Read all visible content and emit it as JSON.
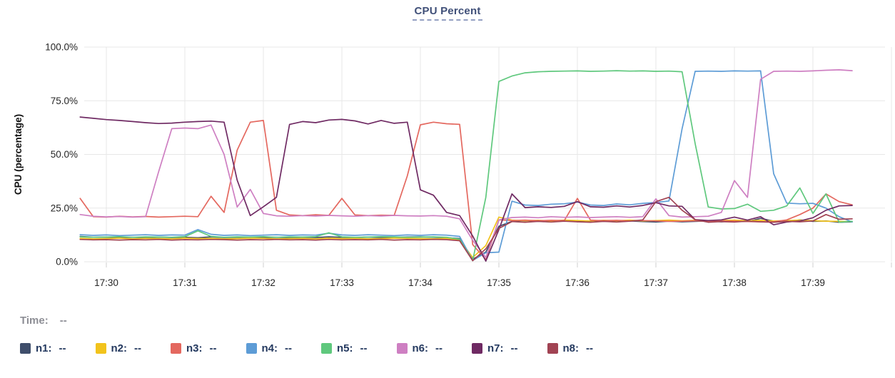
{
  "time_row": {
    "label": "Time:",
    "value": "--"
  },
  "legend": {
    "items": [
      {
        "label": "n1:",
        "value": "--",
        "color": "#3f4e6b"
      },
      {
        "label": "n2:",
        "value": "--",
        "color": "#f2c31c"
      },
      {
        "label": "n3:",
        "value": "--",
        "color": "#e4685f"
      },
      {
        "label": "n4:",
        "value": "--",
        "color": "#5d9cd6"
      },
      {
        "label": "n5:",
        "value": "--",
        "color": "#5fc87d"
      },
      {
        "label": "n6:",
        "value": "--",
        "color": "#ce7fc2"
      },
      {
        "label": "n7:",
        "value": "--",
        "color": "#6f2a63"
      },
      {
        "label": "n8:",
        "value": "--",
        "color": "#a14353"
      }
    ]
  },
  "chart_data": {
    "type": "line",
    "title": "CPU Percent",
    "xlabel": "",
    "ylabel": "CPU (percentage)",
    "ylim": [
      0,
      100
    ],
    "grid": true,
    "legend_position": "bottom",
    "y_ticks": [
      "0.0%",
      "25.0%",
      "50.0%",
      "75.0%",
      "100.0%"
    ],
    "y_tick_values": [
      0,
      25,
      50,
      75,
      100
    ],
    "x_ticks": [
      "17:30",
      "17:31",
      "17:32",
      "17:33",
      "17:34",
      "17:35",
      "17:36",
      "17:37",
      "17:38",
      "17:39"
    ],
    "x_start_time": "17:29:40",
    "x_interval_seconds": 10,
    "series": [
      {
        "name": "n1",
        "color": "#3f4e6b",
        "values": [
          11.8,
          11.4,
          11.5,
          11.3,
          11.4,
          11.2,
          11.5,
          11.3,
          11.4,
          11.2,
          11.6,
          11.3,
          11.4,
          11.5,
          11.3,
          11.4,
          11.2,
          11.5,
          11.3,
          11.6,
          11.4,
          11.2,
          11.5,
          11.3,
          11.4,
          11.5,
          11.6,
          11.4,
          11.2,
          10.8,
          1.2,
          4.5,
          16.5,
          18.8,
          18.5,
          18.9,
          18.6,
          19.0,
          18.8,
          18.5,
          18.9,
          18.6,
          19.0,
          18.7,
          18.5,
          18.9,
          18.6,
          18.8,
          19.0,
          18.6,
          18.9,
          18.7,
          20.2,
          18.9,
          18.6,
          19.5,
          18.8,
          19.0,
          18.4,
          18.6
        ]
      },
      {
        "name": "n2",
        "color": "#f2c31c",
        "values": [
          10.9,
          10.7,
          10.8,
          11.0,
          10.7,
          10.9,
          10.8,
          10.7,
          11.0,
          10.8,
          10.9,
          10.7,
          10.8,
          11.0,
          10.9,
          10.7,
          10.8,
          10.9,
          10.7,
          11.0,
          10.8,
          10.9,
          10.7,
          10.8,
          11.0,
          10.9,
          10.8,
          10.7,
          10.9,
          10.2,
          2.0,
          7.5,
          20.8,
          19.4,
          19.1,
          19.3,
          19.0,
          19.4,
          19.2,
          19.0,
          19.3,
          19.1,
          19.4,
          19.0,
          19.2,
          19.4,
          19.1,
          19.3,
          19.0,
          19.2,
          19.4,
          19.1,
          19.3,
          19.0,
          19.2,
          19.4,
          19.1,
          18.9,
          18.8,
          18.7
        ]
      },
      {
        "name": "n3",
        "color": "#e4685f",
        "values": [
          29.5,
          21.0,
          20.8,
          21.2,
          20.9,
          21.1,
          20.8,
          21.0,
          21.2,
          21.0,
          30.5,
          23.0,
          52.0,
          65.0,
          65.8,
          24.0,
          21.8,
          21.5,
          21.9,
          21.6,
          29.5,
          21.8,
          21.5,
          21.7,
          21.6,
          40.0,
          63.8,
          65.0,
          64.3,
          64.0,
          8.0,
          1.0,
          19.5,
          19.2,
          19.4,
          19.1,
          19.3,
          19.2,
          29.5,
          19.4,
          19.1,
          19.3,
          19.0,
          19.2,
          19.0,
          18.8,
          18.9,
          19.1,
          18.8,
          19.0,
          18.9,
          18.7,
          18.6,
          18.6,
          19.5,
          22.0,
          25.0,
          31.6,
          28.0,
          26.5
        ]
      },
      {
        "name": "n4",
        "color": "#5d9cd6",
        "values": [
          12.6,
          12.3,
          12.5,
          12.2,
          12.4,
          12.6,
          12.3,
          12.5,
          12.4,
          15.0,
          12.8,
          12.3,
          12.5,
          12.2,
          12.4,
          12.6,
          12.3,
          12.5,
          12.4,
          13.3,
          12.5,
          12.3,
          12.6,
          12.4,
          12.2,
          12.5,
          12.3,
          12.6,
          12.4,
          11.8,
          0.6,
          4.2,
          4.5,
          28.2,
          26.4,
          26.2,
          26.8,
          27.0,
          27.8,
          26.4,
          26.2,
          26.9,
          26.5,
          27.2,
          27.6,
          28.3,
          62.0,
          88.7,
          88.8,
          88.7,
          88.9,
          88.8,
          88.9,
          41.0,
          27.3,
          27.0,
          27.2,
          25.0,
          21.0,
          18.5
        ]
      },
      {
        "name": "n5",
        "color": "#5fc87d",
        "values": [
          11.6,
          11.4,
          11.5,
          11.7,
          11.4,
          11.6,
          11.5,
          11.4,
          11.7,
          14.4,
          11.8,
          11.4,
          11.6,
          11.5,
          11.7,
          11.4,
          11.6,
          11.5,
          11.7,
          13.5,
          11.6,
          11.4,
          11.5,
          11.7,
          11.6,
          11.4,
          11.5,
          11.6,
          11.4,
          10.5,
          0.5,
          30.0,
          84.0,
          86.5,
          88.0,
          88.5,
          88.7,
          88.8,
          88.9,
          88.7,
          88.8,
          89.0,
          88.8,
          88.9,
          88.7,
          88.8,
          88.5,
          55.0,
          25.5,
          24.6,
          24.8,
          26.8,
          23.5,
          24.0,
          26.0,
          34.4,
          22.5,
          31.6,
          18.4,
          18.8
        ]
      },
      {
        "name": "n6",
        "color": "#ce7fc2",
        "values": [
          22.0,
          21.2,
          20.9,
          21.1,
          20.8,
          21.0,
          42.0,
          62.0,
          62.3,
          62.0,
          63.7,
          50.0,
          25.5,
          33.7,
          22.5,
          21.4,
          21.2,
          21.5,
          21.3,
          21.6,
          21.4,
          21.2,
          21.5,
          21.3,
          21.6,
          21.4,
          21.3,
          21.5,
          21.2,
          20.0,
          10.0,
          2.0,
          19.5,
          20.6,
          20.8,
          20.5,
          21.0,
          20.7,
          20.9,
          20.6,
          20.8,
          21.0,
          20.7,
          21.0,
          29.3,
          21.5,
          20.8,
          21.0,
          21.2,
          23.0,
          37.8,
          30.0,
          85.0,
          88.7,
          88.8,
          88.7,
          88.9,
          89.2,
          89.4,
          89.0
        ]
      },
      {
        "name": "n7",
        "color": "#6f2a63",
        "values": [
          67.4,
          66.8,
          66.2,
          65.8,
          65.3,
          64.8,
          64.4,
          64.6,
          65.0,
          65.3,
          65.5,
          65.0,
          38.0,
          21.5,
          25.6,
          30.0,
          64.0,
          65.3,
          64.8,
          66.0,
          66.3,
          65.6,
          64.2,
          65.8,
          64.5,
          65.0,
          33.5,
          31.0,
          23.0,
          21.5,
          12.0,
          0.3,
          15.0,
          31.6,
          25.2,
          25.6,
          25.3,
          25.8,
          28.0,
          25.6,
          25.4,
          26.0,
          25.5,
          26.2,
          27.5,
          26.0,
          25.8,
          19.6,
          19.2,
          19.5,
          20.8,
          19.4,
          21.0,
          17.2,
          18.5,
          19.0,
          20.5,
          24.0,
          26.0,
          26.2
        ]
      },
      {
        "name": "n8",
        "color": "#a14353",
        "values": [
          10.4,
          10.2,
          10.3,
          10.1,
          10.3,
          10.2,
          10.4,
          10.1,
          10.3,
          10.2,
          10.4,
          10.3,
          10.1,
          10.3,
          10.2,
          10.4,
          10.2,
          10.3,
          10.1,
          10.4,
          10.2,
          10.3,
          10.2,
          10.4,
          10.1,
          10.3,
          10.2,
          10.4,
          10.3,
          9.8,
          0.5,
          6.0,
          15.5,
          18.7,
          18.4,
          18.8,
          18.5,
          18.9,
          18.6,
          18.4,
          18.8,
          18.5,
          18.9,
          19.5,
          28.0,
          30.0,
          24.0,
          19.6,
          18.4,
          18.7,
          18.5,
          18.9,
          18.6,
          18.4,
          18.8,
          18.6,
          19.0,
          22.0,
          19.8,
          20.0
        ]
      }
    ]
  },
  "style": {
    "grid_color": "#e7e7e7",
    "tick_mark_color": "#cfcfcf",
    "tick_text_color": "#262626",
    "axis_name_color": "#111111",
    "title_color": "#3f4f78"
  }
}
